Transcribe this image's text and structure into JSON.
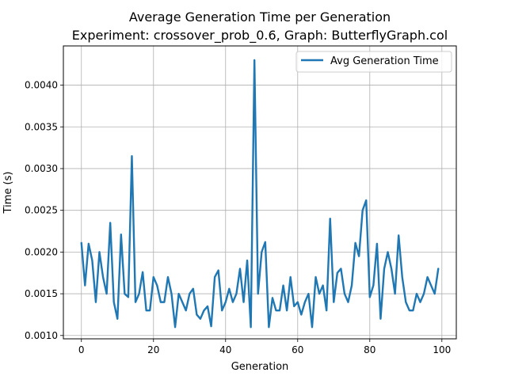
{
  "chart_data": {
    "type": "line",
    "title_line1": "Average Generation Time per Generation",
    "title_line2": "Experiment: crossover_prob_0.6, Graph: ButterflyGraph.col",
    "xlabel": "Generation",
    "ylabel": "Time (s)",
    "xlim": [
      -5,
      104
    ],
    "ylim": [
      0.00096,
      0.00447
    ],
    "xticks": [
      0,
      20,
      40,
      60,
      80,
      100
    ],
    "xtick_labels": [
      "0",
      "20",
      "40",
      "60",
      "80",
      "100"
    ],
    "yticks": [
      0.001,
      0.0015,
      0.002,
      0.0025,
      0.003,
      0.0035,
      0.004
    ],
    "ytick_labels": [
      "0.0010",
      "0.0015",
      "0.0020",
      "0.0025",
      "0.0030",
      "0.0035",
      "0.0040"
    ],
    "grid": true,
    "legend_position": "top-right",
    "line_color": "#1f77b4",
    "series": [
      {
        "name": "Avg Generation Time",
        "x": [
          0,
          1,
          2,
          3,
          4,
          5,
          6,
          7,
          8,
          9,
          10,
          11,
          12,
          13,
          14,
          15,
          16,
          17,
          18,
          19,
          20,
          21,
          22,
          23,
          24,
          25,
          26,
          27,
          28,
          29,
          30,
          31,
          32,
          33,
          34,
          35,
          36,
          37,
          38,
          39,
          40,
          41,
          42,
          43,
          44,
          45,
          46,
          47,
          48,
          49,
          50,
          51,
          52,
          53,
          54,
          55,
          56,
          57,
          58,
          59,
          60,
          61,
          62,
          63,
          64,
          65,
          66,
          67,
          68,
          69,
          70,
          71,
          72,
          73,
          74,
          75,
          76,
          77,
          78,
          79,
          80,
          81,
          82,
          83,
          84,
          85,
          86,
          87,
          88,
          89,
          90,
          91,
          92,
          93,
          94,
          95,
          96,
          97,
          98,
          99
        ],
        "values": [
          0.00211,
          0.0016,
          0.0021,
          0.0019,
          0.0014,
          0.002,
          0.0017,
          0.0015,
          0.00235,
          0.0014,
          0.0012,
          0.00221,
          0.0015,
          0.00146,
          0.00315,
          0.0014,
          0.0015,
          0.00176,
          0.0013,
          0.0013,
          0.0017,
          0.0016,
          0.0014,
          0.0014,
          0.0017,
          0.0015,
          0.0011,
          0.0015,
          0.0014,
          0.0013,
          0.0015,
          0.00156,
          0.00125,
          0.0012,
          0.0013,
          0.00135,
          0.00111,
          0.0017,
          0.00178,
          0.0013,
          0.0014,
          0.00156,
          0.0014,
          0.0015,
          0.0018,
          0.0014,
          0.0019,
          0.0011,
          0.0043,
          0.0015,
          0.002,
          0.00212,
          0.0011,
          0.00145,
          0.0013,
          0.0013,
          0.0016,
          0.0013,
          0.0017,
          0.00135,
          0.0014,
          0.00125,
          0.0014,
          0.0015,
          0.0011,
          0.0017,
          0.0015,
          0.0016,
          0.0013,
          0.0024,
          0.0014,
          0.00175,
          0.0018,
          0.0015,
          0.0014,
          0.0016,
          0.00211,
          0.00195,
          0.0025,
          0.00262,
          0.00146,
          0.0016,
          0.0021,
          0.0012,
          0.0018,
          0.002,
          0.0018,
          0.0015,
          0.0022,
          0.0017,
          0.0014,
          0.0013,
          0.0013,
          0.0015,
          0.0014,
          0.0015,
          0.0017,
          0.0016,
          0.0015,
          0.0018
        ]
      }
    ]
  }
}
